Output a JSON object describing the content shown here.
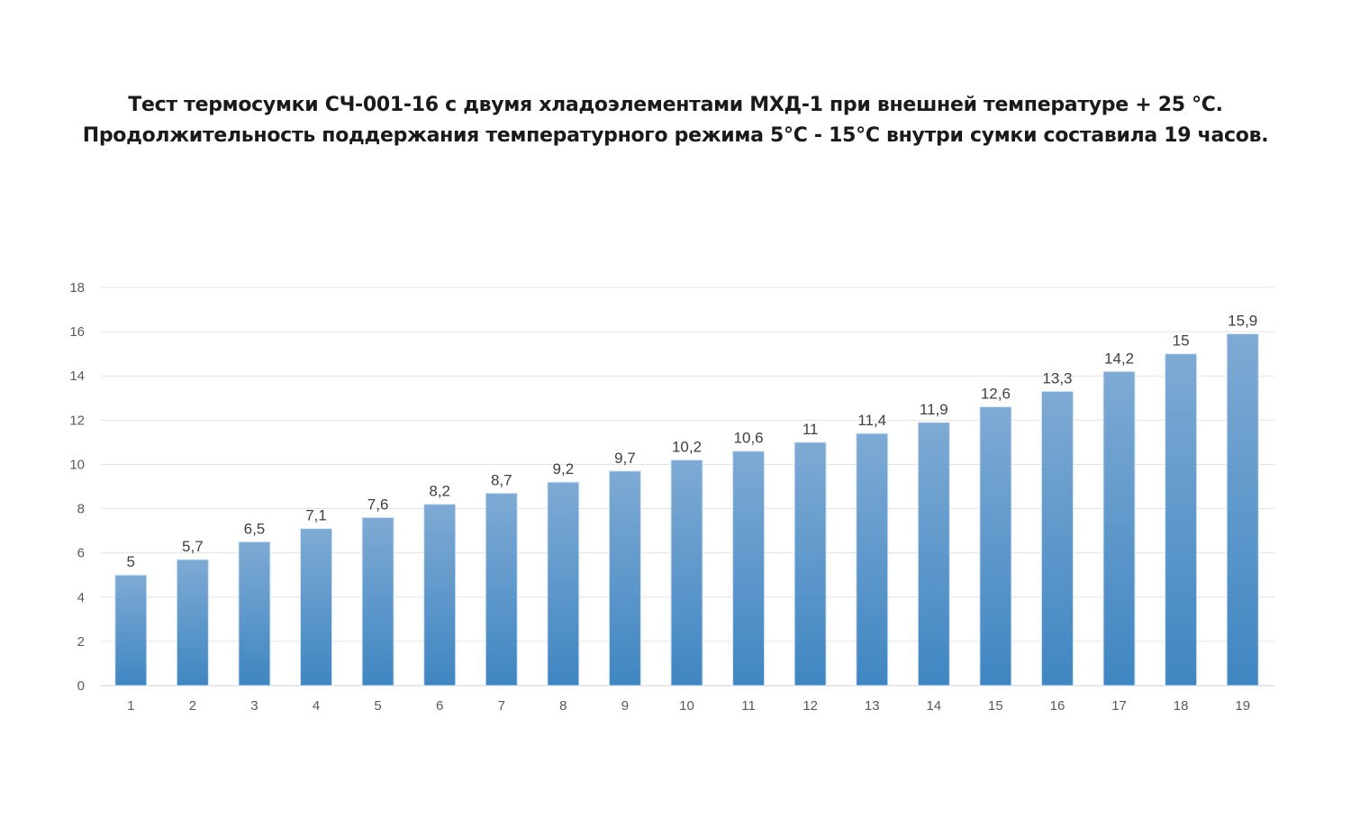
{
  "chart_data": {
    "type": "bar",
    "title": "Тест термосумки СЧ-001-16  с двумя хладоэлементами МХД-1 при внешней температуре + 25 °С.",
    "subtitle": "Продолжительность поддержания температурного режима 5°С - 15°С внутри сумки составила 19 часов.",
    "xlabel": "",
    "ylabel": "",
    "categories": [
      "1",
      "2",
      "3",
      "4",
      "5",
      "6",
      "7",
      "8",
      "9",
      "10",
      "11",
      "12",
      "13",
      "14",
      "15",
      "16",
      "17",
      "18",
      "19"
    ],
    "values": [
      5,
      5.7,
      6.5,
      7.1,
      7.6,
      8.2,
      8.7,
      9.2,
      9.7,
      10.2,
      10.6,
      11,
      11.4,
      11.9,
      12.6,
      13.3,
      14.2,
      15,
      15.9
    ],
    "data_labels": [
      "5",
      "5,7",
      "6,5",
      "7,1",
      "7,6",
      "8,2",
      "8,7",
      "9,2",
      "9,7",
      "10,2",
      "10,6",
      "11",
      "11,4",
      "11,9",
      "12,6",
      "13,3",
      "14,2",
      "15",
      "15,9"
    ],
    "ylim": [
      0,
      18
    ],
    "yticks": [
      0,
      2,
      4,
      6,
      8,
      10,
      12,
      14,
      16,
      18
    ],
    "grid": true,
    "legend": "none",
    "colors": {
      "bar_top": "#7eaad4",
      "bar_bottom": "#3f86c2",
      "grid": "#e3e3e3"
    }
  }
}
